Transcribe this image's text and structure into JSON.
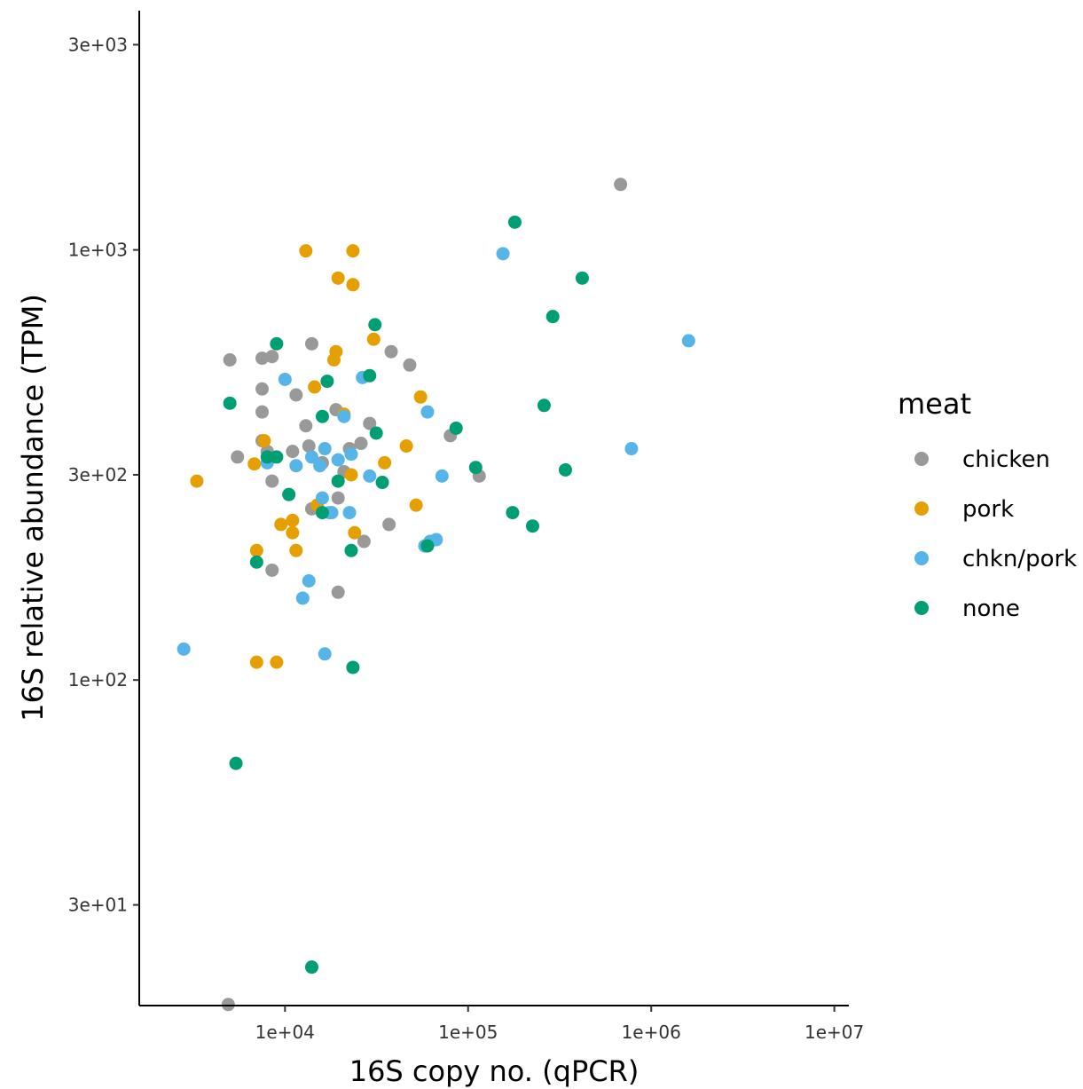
{
  "chart_data": {
    "type": "scatter",
    "xlabel": "16S copy no. (qPCR)",
    "ylabel": "16S relative abundance (TPM)",
    "x_scale": "log10",
    "y_scale": "log10",
    "xlim": [
      1600,
      12000000
    ],
    "ylim": [
      17.5,
      3600
    ],
    "x_ticks": [
      10000,
      100000,
      1000000,
      10000000
    ],
    "x_tick_labels": [
      "1e+04",
      "1e+05",
      "1e+06",
      "1e+07"
    ],
    "y_ticks": [
      30,
      100,
      300,
      1000,
      3000
    ],
    "y_tick_labels": [
      "3e+01",
      "1e+02",
      "3e+02",
      "1e+03",
      "3e+03"
    ],
    "grid": false,
    "legend": {
      "title": "meat",
      "placement": "right",
      "entries": [
        "chicken",
        "pork",
        "chkn/pork",
        "none"
      ]
    },
    "colors": {
      "chicken": "#999999",
      "pork": "#E69F00",
      "chkn/pork": "#56B4E9",
      "none": "#009E73",
      "axis": "#000000"
    },
    "series": [
      {
        "name": "chicken",
        "points": [
          [
            680000,
            1420
          ],
          [
            5000,
            555
          ],
          [
            7500,
            560
          ],
          [
            8500,
            565
          ],
          [
            14000,
            605
          ],
          [
            38000,
            580
          ],
          [
            48000,
            540
          ],
          [
            7500,
            475
          ],
          [
            11500,
            460
          ],
          [
            7500,
            420
          ],
          [
            19000,
            425
          ],
          [
            13000,
            390
          ],
          [
            29000,
            395
          ],
          [
            7500,
            360
          ],
          [
            80000,
            370
          ],
          [
            5500,
            330
          ],
          [
            8000,
            340
          ],
          [
            11000,
            340
          ],
          [
            13500,
            350
          ],
          [
            16000,
            320
          ],
          [
            22500,
            345
          ],
          [
            26000,
            355
          ],
          [
            21000,
            305
          ],
          [
            8500,
            290
          ],
          [
            19500,
            265
          ],
          [
            14000,
            250
          ],
          [
            37000,
            230
          ],
          [
            27000,
            210
          ],
          [
            115000,
            298
          ],
          [
            8500,
            180
          ],
          [
            19500,
            160
          ],
          [
            4900,
            17.6
          ]
        ]
      },
      {
        "name": "pork",
        "points": [
          [
            13000,
            995
          ],
          [
            23500,
            995
          ],
          [
            19500,
            860
          ],
          [
            23500,
            830
          ],
          [
            30500,
            620
          ],
          [
            19000,
            580
          ],
          [
            18500,
            555
          ],
          [
            14500,
            480
          ],
          [
            55000,
            455
          ],
          [
            21000,
            415
          ],
          [
            7700,
            360
          ],
          [
            6800,
            318
          ],
          [
            35000,
            320
          ],
          [
            46000,
            350
          ],
          [
            3300,
            290
          ],
          [
            23000,
            300
          ],
          [
            15000,
            255
          ],
          [
            52000,
            255
          ],
          [
            11000,
            235
          ],
          [
            9500,
            230
          ],
          [
            11000,
            220
          ],
          [
            24000,
            220
          ],
          [
            7000,
            200
          ],
          [
            11500,
            200
          ],
          [
            7000,
            110
          ],
          [
            9000,
            110
          ]
        ]
      },
      {
        "name": "chkn/pork",
        "points": [
          [
            155000,
            980
          ],
          [
            1600000,
            615
          ],
          [
            26500,
            505
          ],
          [
            10000,
            500
          ],
          [
            21000,
            410
          ],
          [
            60000,
            420
          ],
          [
            780000,
            345
          ],
          [
            16500,
            345
          ],
          [
            23000,
            335
          ],
          [
            19500,
            325
          ],
          [
            14000,
            330
          ],
          [
            11500,
            315
          ],
          [
            15500,
            315
          ],
          [
            8000,
            320
          ],
          [
            29000,
            298
          ],
          [
            72000,
            298
          ],
          [
            16000,
            265
          ],
          [
            17500,
            245
          ],
          [
            18000,
            245
          ],
          [
            22500,
            245
          ],
          [
            58000,
            205
          ],
          [
            62000,
            210
          ],
          [
            67000,
            212
          ],
          [
            13500,
            170
          ],
          [
            12500,
            155
          ],
          [
            2800,
            118
          ],
          [
            16500,
            115
          ]
        ]
      },
      {
        "name": "none",
        "points": [
          [
            180000,
            1160
          ],
          [
            420000,
            860
          ],
          [
            290000,
            700
          ],
          [
            31000,
            670
          ],
          [
            9000,
            605
          ],
          [
            29000,
            510
          ],
          [
            17000,
            495
          ],
          [
            5000,
            440
          ],
          [
            260000,
            435
          ],
          [
            16000,
            410
          ],
          [
            86000,
            385
          ],
          [
            31500,
            375
          ],
          [
            8000,
            330
          ],
          [
            9000,
            330
          ],
          [
            110000,
            312
          ],
          [
            340000,
            308
          ],
          [
            19500,
            290
          ],
          [
            34000,
            288
          ],
          [
            10500,
            270
          ],
          [
            16000,
            245
          ],
          [
            175000,
            245
          ],
          [
            225000,
            228
          ],
          [
            23000,
            200
          ],
          [
            60000,
            205
          ],
          [
            7000,
            188
          ],
          [
            23500,
            107
          ],
          [
            5400,
            64
          ],
          [
            14000,
            21.5
          ]
        ]
      }
    ]
  }
}
